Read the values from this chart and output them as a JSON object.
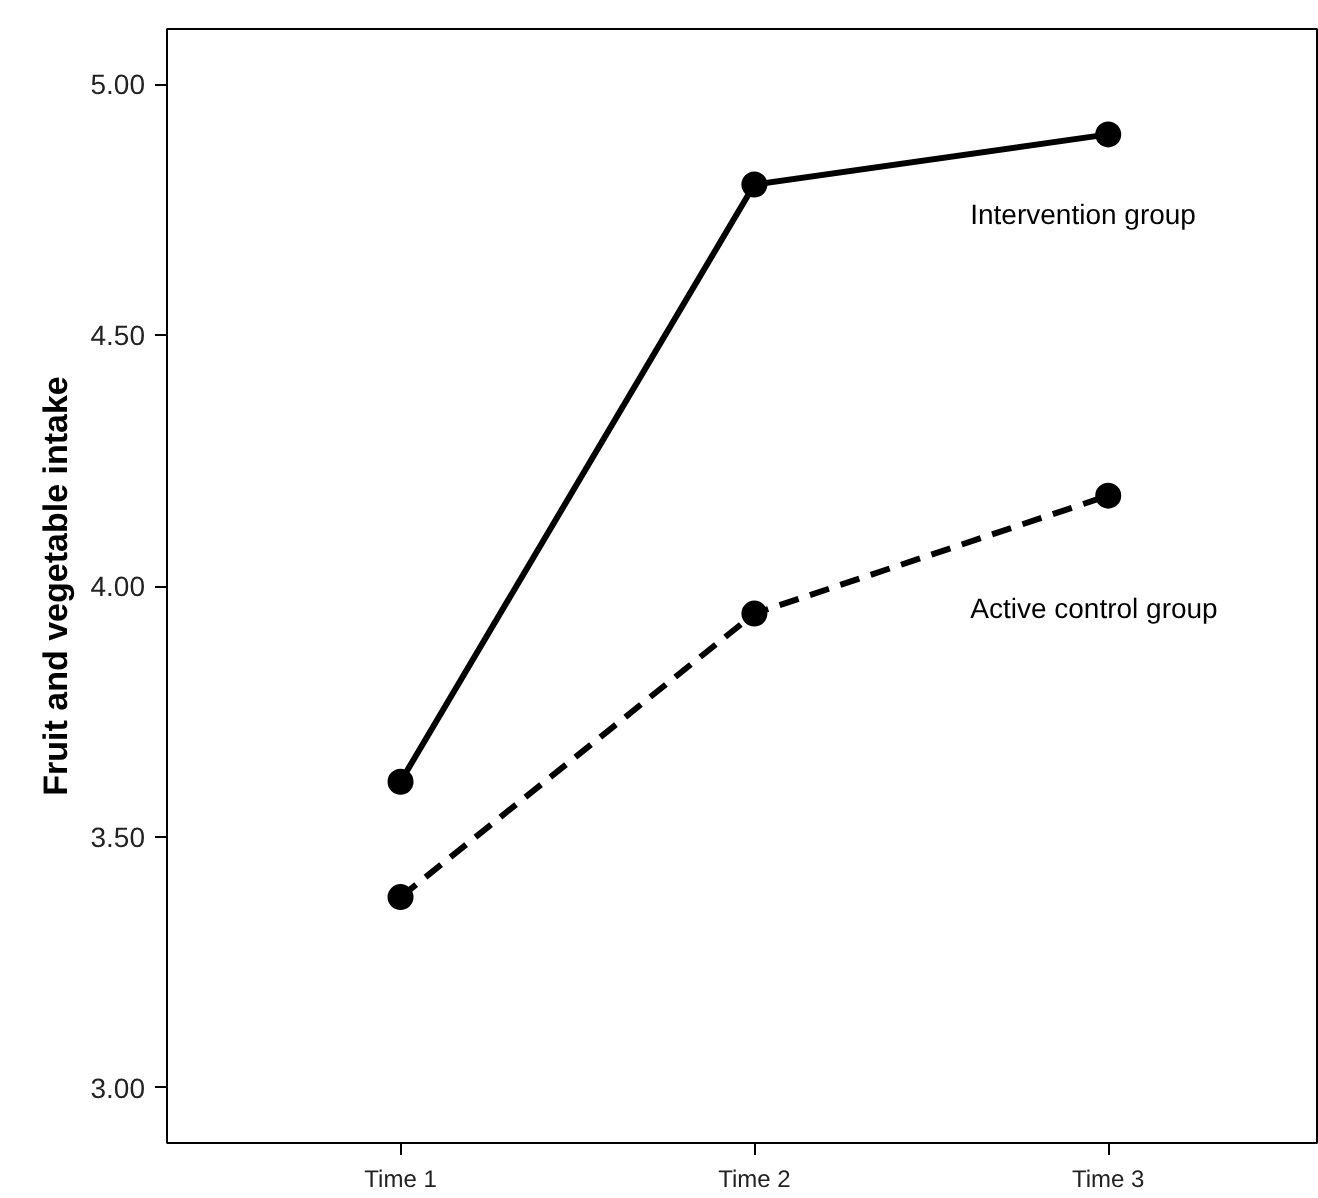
{
  "chart_data": {
    "type": "line",
    "ylabel": "Fruit and vegetable intake",
    "categories": [
      "Time 1",
      "Time 2",
      "Time 3"
    ],
    "series": [
      {
        "name": "Intervention group",
        "color": "#000000",
        "values": [
          3.61,
          4.8,
          4.9
        ],
        "line_style": "solid"
      },
      {
        "name": "Active control group",
        "color": "#000000",
        "values": [
          3.38,
          3.945,
          4.18
        ],
        "line_style": "dashed"
      }
    ],
    "ylim": [
      2.89,
      5.11
    ],
    "yticks": [
      {
        "value": 3,
        "label": "3.00"
      },
      {
        "value": 3.5,
        "label": "3.50"
      },
      {
        "value": 4,
        "label": "4.00"
      },
      {
        "value": 4.5,
        "label": "4.50"
      },
      {
        "value": 5,
        "label": "5.00"
      }
    ],
    "marker": "circle",
    "grid": false
  }
}
